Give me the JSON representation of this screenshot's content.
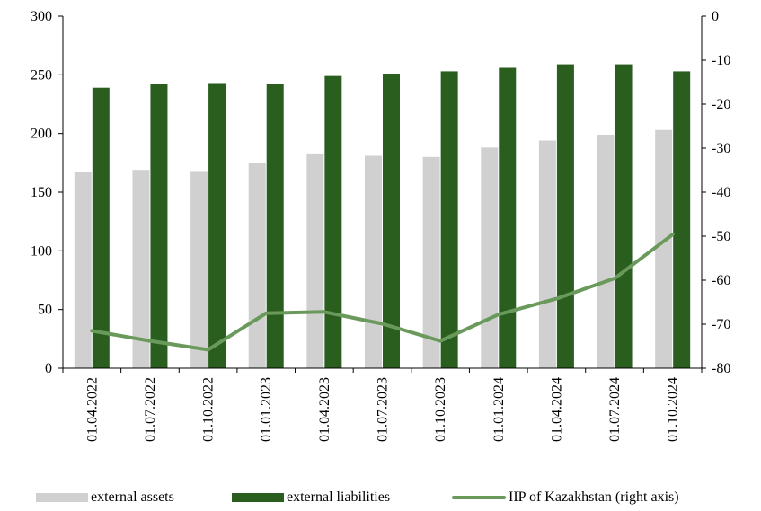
{
  "chart_data": {
    "type": "bar",
    "categories": [
      "01.04.2022",
      "01.07.2022",
      "01.10.2022",
      "01.01.2023",
      "01.04.2023",
      "01.07.2023",
      "01.10.2023",
      "01.01.2024",
      "01.04.2024",
      "01.07.2024",
      "01.10.2024"
    ],
    "series": [
      {
        "name": "external assets",
        "kind": "bar",
        "axis": "left",
        "color": "#d0d0d0",
        "values": [
          167,
          169,
          168,
          175,
          183,
          181,
          180,
          188,
          194,
          199,
          203
        ]
      },
      {
        "name": "external liabilities",
        "kind": "bar",
        "axis": "left",
        "color": "#2a5e1e",
        "values": [
          239,
          242,
          243,
          242,
          249,
          251,
          253,
          256,
          259,
          259,
          253
        ]
      },
      {
        "name": "IIP of Kazakhstan (right axis)",
        "kind": "line",
        "axis": "right",
        "color": "#6a9a5b",
        "values": [
          -71.5,
          -73.8,
          -75.8,
          -67.5,
          -67.2,
          -69.9,
          -73.8,
          -67.8,
          -64.2,
          -59.6,
          -49.6
        ]
      }
    ],
    "left_axis": {
      "min": 0,
      "max": 300,
      "ticks": [
        "0",
        "50",
        "100",
        "150",
        "200",
        "250",
        "300"
      ]
    },
    "right_axis": {
      "min": -80,
      "max": 0,
      "ticks": [
        "-80",
        "-70",
        "-60",
        "-50",
        "-40",
        "-30",
        "-20",
        "-10",
        "0"
      ]
    },
    "grid": false,
    "legend_position": "bottom"
  },
  "legend": {
    "assets": "external assets",
    "liabilities": "external liabilities",
    "iip": "IIP of Kazakhstan (right axis)"
  }
}
